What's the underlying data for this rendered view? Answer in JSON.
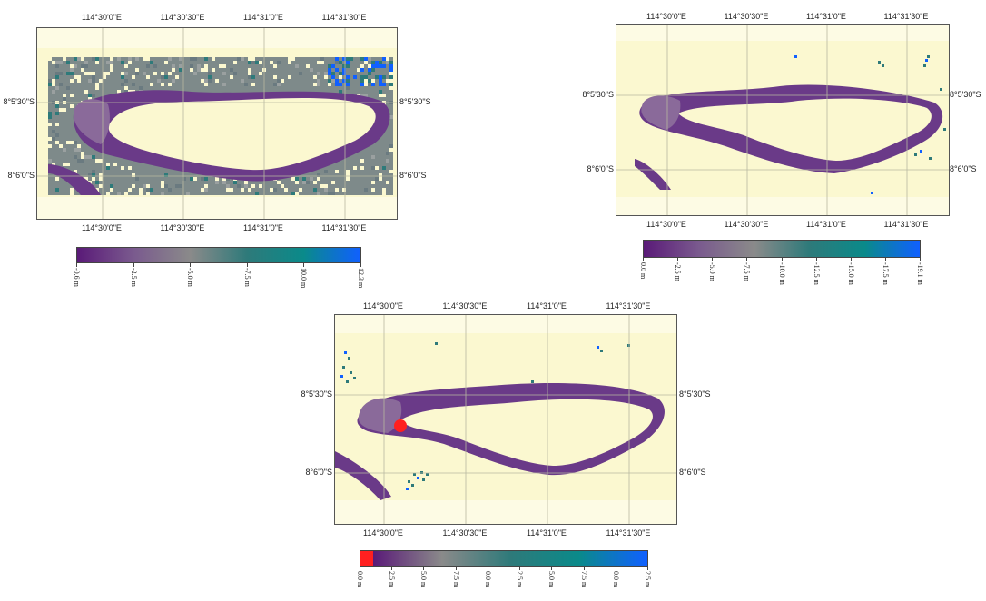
{
  "panels": [
    {
      "id": "map-a",
      "top_labels": [
        "114°30'0\"E",
        "114°30'30\"E",
        "114°31'0\"E",
        "114°31'30\"E"
      ],
      "bottom_labels": [
        "114°30'0\"E",
        "114°30'30\"E",
        "114°31'0\"E",
        "114°31'30\"E"
      ],
      "left_labels": [
        "8°5'30\"S",
        "8°6'0\"S"
      ],
      "right_labels": [
        "8°5'30\"S",
        "8°6'0\"S"
      ],
      "legend_ticks": [
        "-0.6 m",
        "-2.5 m",
        "-5.0 m",
        "-7.5 m",
        "10.0 m",
        "12.3 m"
      ],
      "legend_colors": [
        "#5a1a78",
        "#7a5a8e",
        "#8a8a8a",
        "#2e7a7a",
        "#0a8a8a",
        "#1060ff"
      ]
    },
    {
      "id": "map-b",
      "top_labels": [
        "114°30'0\"E",
        "114°30'30\"E",
        "114°31'0\"E",
        "114°31'30\"E"
      ],
      "bottom_labels": [
        "114°30'0\"E",
        "114°30'30\"E",
        "114°31'0\"E",
        "114°31'30\"E"
      ],
      "left_labels": [
        "8°5'30\"S",
        "8°6'0\"S"
      ],
      "right_labels": [
        "8°5'30\"S",
        "8°6'0\"S"
      ],
      "legend_ticks": [
        "0.0 m",
        "-2.5 m",
        "-5.0 m",
        "-7.5 m",
        "-10.0 m",
        "-12.5 m",
        "-15.0 m",
        "-17.5 m",
        "-19.1 m"
      ],
      "legend_colors": [
        "#5a1a78",
        "#7a5a8e",
        "#8a8a8a",
        "#2e7a7a",
        "#0a8a8a",
        "#1060ff"
      ]
    },
    {
      "id": "map-c",
      "top_labels": [
        "114°30'0\"E",
        "114°30'30\"E",
        "114°31'0\"E",
        "114°31'30\"E"
      ],
      "bottom_labels": [
        "114°30'0\"E",
        "114°30'30\"E",
        "114°31'0\"E",
        "114°31'30\"E"
      ],
      "left_labels": [
        "8°5'30\"S",
        "8°6'0\"S"
      ],
      "right_labels": [
        "8°5'30\"S",
        "8°6'0\"S"
      ],
      "legend_ticks": [
        "0.0 m",
        "2.5 m",
        "5.0 m",
        "7.5 m",
        "0.0 m",
        "2.5 m",
        "5.0 m",
        "7.5 m",
        "0.0 m",
        "2.5 m"
      ],
      "legend_colors": [
        "#ff2020",
        "#5a1a78",
        "#8a8a8a",
        "#2e7a7a",
        "#0a8a8a",
        "#1060ff"
      ]
    }
  ],
  "colors": {
    "background_land": "#fbf8d0",
    "band_light": "#fdfbe4",
    "depth_deep": "#5a1a78",
    "depth_mid": "#7a5a8e",
    "noise_gray": "#8a8a8a",
    "noise_teal": "#2e7a7a",
    "noise_blue": "#1060ff",
    "hotspot_red": "#ff2020",
    "grid": "#b8b8a0"
  }
}
